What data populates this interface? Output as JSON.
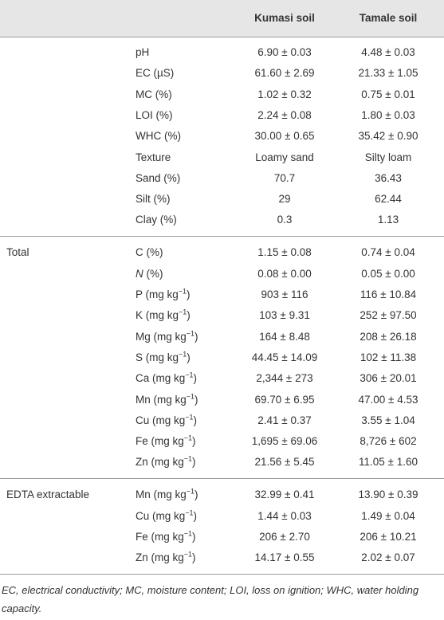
{
  "table": {
    "columns": [
      "Kumasi soil",
      "Tamale soil"
    ],
    "groups": [
      {
        "rows": [
          {
            "property": [
              {
                "t": "pH"
              }
            ],
            "values": [
              "6.90 ± 0.03",
              "4.48 ± 0.03"
            ]
          },
          {
            "property": [
              {
                "t": "EC (µS)"
              }
            ],
            "values": [
              "61.60 ± 2.69",
              "21.33 ± 1.05"
            ]
          },
          {
            "property": [
              {
                "t": "MC (%)"
              }
            ],
            "values": [
              "1.02 ± 0.32",
              "0.75 ± 0.01"
            ]
          },
          {
            "property": [
              {
                "t": "LOI (%)"
              }
            ],
            "values": [
              "2.24 ± 0.08",
              "1.80 ± 0.03"
            ]
          },
          {
            "property": [
              {
                "t": "WHC (%)"
              }
            ],
            "values": [
              "30.00 ± 0.65",
              "35.42 ± 0.90"
            ]
          },
          {
            "property": [
              {
                "t": "Texture"
              }
            ],
            "values": [
              "Loamy sand",
              "Silty loam"
            ]
          },
          {
            "property": [
              {
                "t": "Sand (%)"
              }
            ],
            "values": [
              "70.7",
              "36.43"
            ]
          },
          {
            "property": [
              {
                "t": "Silt (%)"
              }
            ],
            "values": [
              "29",
              "62.44"
            ]
          },
          {
            "property": [
              {
                "t": "Clay (%)"
              }
            ],
            "values": [
              "0.3",
              "1.13"
            ]
          }
        ]
      },
      {
        "name": "Total",
        "rows": [
          {
            "property": [
              {
                "t": "C (%)"
              }
            ],
            "values": [
              "1.15 ± 0.08",
              "0.74 ± 0.04"
            ]
          },
          {
            "property": [
              {
                "t": "N",
                "italic": true
              },
              {
                "t": " (%)"
              }
            ],
            "values": [
              "0.08 ± 0.00",
              "0.05 ± 0.00"
            ]
          },
          {
            "property": [
              {
                "t": "P (mg kg"
              },
              {
                "t": "−1",
                "sup": true
              },
              {
                "t": ")"
              }
            ],
            "values": [
              "903 ± 116",
              "116 ± 10.84"
            ]
          },
          {
            "property": [
              {
                "t": "K (mg kg"
              },
              {
                "t": "−1",
                "sup": true
              },
              {
                "t": ")"
              }
            ],
            "values": [
              "103 ± 9.31",
              "252 ± 97.50"
            ]
          },
          {
            "property": [
              {
                "t": "Mg (mg kg"
              },
              {
                "t": "−1",
                "sup": true
              },
              {
                "t": ")"
              }
            ],
            "values": [
              "164 ± 8.48",
              "208 ± 26.18"
            ]
          },
          {
            "property": [
              {
                "t": "S (mg kg"
              },
              {
                "t": "−1",
                "sup": true
              },
              {
                "t": ")"
              }
            ],
            "values": [
              "44.45 ± 14.09",
              "102 ± 11.38"
            ]
          },
          {
            "property": [
              {
                "t": "Ca (mg kg"
              },
              {
                "t": "−1",
                "sup": true
              },
              {
                "t": ")"
              }
            ],
            "values": [
              "2,344 ± 273",
              "306 ± 20.01"
            ]
          },
          {
            "property": [
              {
                "t": "Mn (mg kg"
              },
              {
                "t": "−1",
                "sup": true
              },
              {
                "t": ")"
              }
            ],
            "values": [
              "69.70 ± 6.95",
              "47.00 ± 4.53"
            ]
          },
          {
            "property": [
              {
                "t": "Cu (mg kg"
              },
              {
                "t": "−1",
                "sup": true
              },
              {
                "t": ")"
              }
            ],
            "values": [
              "2.41 ± 0.37",
              "3.55 ± 1.04"
            ]
          },
          {
            "property": [
              {
                "t": "Fe (mg kg"
              },
              {
                "t": "−1",
                "sup": true
              },
              {
                "t": ")"
              }
            ],
            "values": [
              "1,695 ± 69.06",
              "8,726 ± 602"
            ]
          },
          {
            "property": [
              {
                "t": "Zn (mg kg"
              },
              {
                "t": "−1",
                "sup": true
              },
              {
                "t": ")"
              }
            ],
            "values": [
              "21.56 ± 5.45",
              "11.05 ± 1.60"
            ]
          }
        ]
      },
      {
        "name": "EDTA extractable",
        "rows": [
          {
            "property": [
              {
                "t": "Mn (mg kg"
              },
              {
                "t": "−1",
                "sup": true
              },
              {
                "t": ")"
              }
            ],
            "values": [
              "32.99 ± 0.41",
              "13.90 ± 0.39"
            ]
          },
          {
            "property": [
              {
                "t": "Cu (mg kg"
              },
              {
                "t": "−1",
                "sup": true
              },
              {
                "t": ")"
              }
            ],
            "values": [
              "1.44 ± 0.03",
              "1.49 ± 0.04"
            ]
          },
          {
            "property": [
              {
                "t": "Fe (mg kg"
              },
              {
                "t": "−1",
                "sup": true
              },
              {
                "t": ")"
              }
            ],
            "values": [
              "206 ± 2.70",
              "206 ± 10.21"
            ]
          },
          {
            "property": [
              {
                "t": "Zn (mg kg"
              },
              {
                "t": "−1",
                "sup": true
              },
              {
                "t": ")"
              }
            ],
            "values": [
              "14.17 ± 0.55",
              "2.02 ± 0.07"
            ]
          }
        ]
      }
    ],
    "footnote": "EC, electrical conductivity; MC, moisture content; LOI, loss on ignition; WHC, water holding capacity."
  }
}
